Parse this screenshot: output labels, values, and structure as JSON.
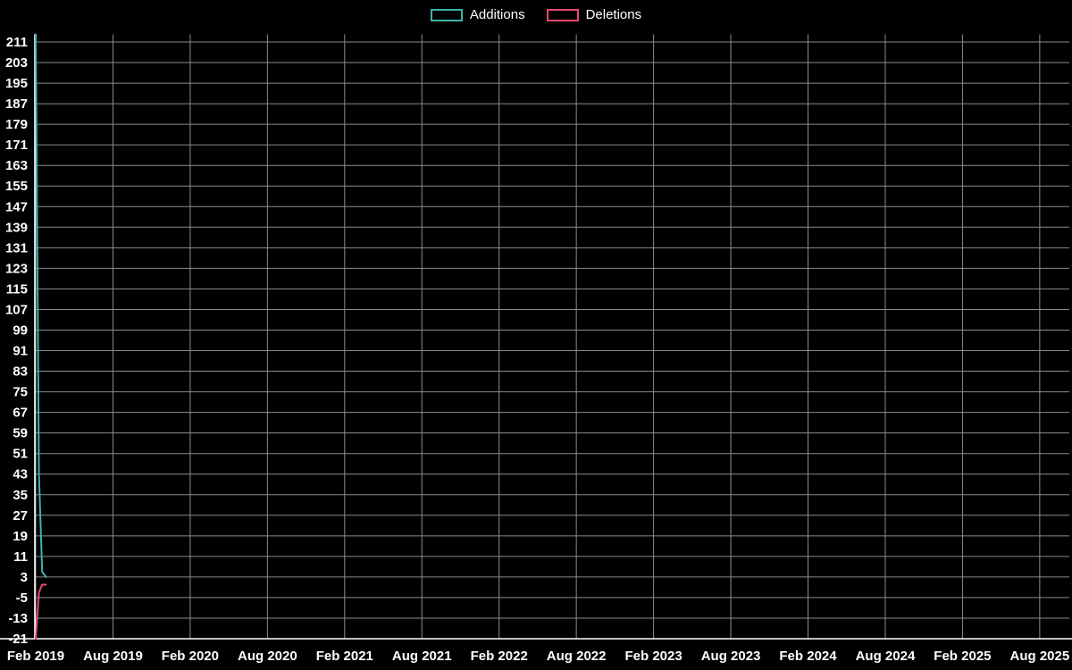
{
  "legend": {
    "items": [
      {
        "label": "Additions",
        "color": "#3db3ab"
      },
      {
        "label": "Deletions",
        "color": "#e5486d"
      }
    ]
  },
  "chart_data": {
    "type": "line",
    "title": "",
    "background_color": "#000000",
    "grid": true,
    "grid_color": "#8c8c8c",
    "axis_color": "#ffffff",
    "text_color": "#ffffff",
    "legend_position": "top",
    "x_axis": {
      "unit": "months since Feb 2019",
      "domain": [
        0,
        80.3
      ],
      "ticks": [
        {
          "label": "Feb 2019",
          "month": 0
        },
        {
          "label": "Aug 2019",
          "month": 6
        },
        {
          "label": "Feb 2020",
          "month": 12
        },
        {
          "label": "Aug 2020",
          "month": 18
        },
        {
          "label": "Feb 2021",
          "month": 24
        },
        {
          "label": "Aug 2021",
          "month": 30
        },
        {
          "label": "Feb 2022",
          "month": 36
        },
        {
          "label": "Aug 2022",
          "month": 42
        },
        {
          "label": "Feb 2023",
          "month": 48
        },
        {
          "label": "Aug 2023",
          "month": 54
        },
        {
          "label": "Feb 2024",
          "month": 60
        },
        {
          "label": "Aug 2024",
          "month": 66
        },
        {
          "label": "Feb 2025",
          "month": 72
        },
        {
          "label": "Aug 2025",
          "month": 78
        }
      ]
    },
    "y_axis": {
      "domain": [
        -21,
        214
      ],
      "tick_step": 8,
      "ticks": [
        -21,
        -13,
        -5,
        3,
        11,
        19,
        27,
        35,
        43,
        51,
        59,
        67,
        75,
        83,
        91,
        99,
        107,
        115,
        123,
        131,
        139,
        147,
        155,
        163,
        171,
        179,
        187,
        195,
        203,
        211
      ]
    },
    "series": [
      {
        "name": "Additions",
        "color": "#3db3ab",
        "points": [
          {
            "month": 0.0,
            "value": 214
          },
          {
            "month": 0.25,
            "value": 43
          },
          {
            "month": 0.5,
            "value": 5
          },
          {
            "month": 0.8,
            "value": 3
          }
        ]
      },
      {
        "name": "Deletions",
        "color": "#e5486d",
        "points": [
          {
            "month": 0.0,
            "value": -21
          },
          {
            "month": 0.25,
            "value": -3
          },
          {
            "month": 0.5,
            "value": 0
          },
          {
            "month": 0.8,
            "value": 0
          }
        ]
      }
    ]
  }
}
